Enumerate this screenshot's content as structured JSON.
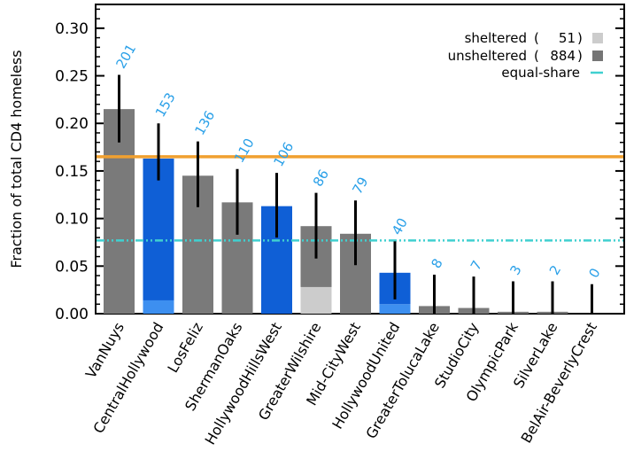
{
  "chart_data": {
    "type": "bar",
    "title": "",
    "xlabel": "",
    "ylabel": "Fraction of total CD4 homeless",
    "ylim": [
      0,
      0.325
    ],
    "yticks": [
      "0.00",
      "0.05",
      "0.10",
      "0.15",
      "0.20",
      "0.25",
      "0.30"
    ],
    "categories": [
      "VanNuys",
      "CentralHollywood",
      "LosFeliz",
      "ShermanOaks",
      "HollywoodHillsWest",
      "GreaterWilshire",
      "Mid-CityWest",
      "HollywoodUnited",
      "GreaterTolucaLake",
      "StudioCity",
      "OlympicPark",
      "SilverLake",
      "BelAir-BeverlyCrest"
    ],
    "counts": [
      "201",
      "153",
      "136",
      "110",
      "106",
      "86",
      "79",
      "40",
      "8",
      "7",
      "3",
      "2",
      "0"
    ],
    "series": [
      {
        "name": "sheltered",
        "values": [
          0.0,
          0.014,
          0.0,
          0.0,
          0.0,
          0.028,
          0.0,
          0.01,
          0.0,
          0.0,
          0.0,
          0.0,
          0.0
        ]
      },
      {
        "name": "unsheltered",
        "values": [
          0.215,
          0.149,
          0.145,
          0.117,
          0.113,
          0.064,
          0.084,
          0.033,
          0.008,
          0.006,
          0.002,
          0.002,
          0.0
        ]
      }
    ],
    "highlighted": [
      "CentralHollywood",
      "HollywoodHillsWest",
      "HollywoodUnited"
    ],
    "error_bars": [
      {
        "low": 0.18,
        "high": 0.251
      },
      {
        "low": 0.14,
        "high": 0.2
      },
      {
        "low": 0.112,
        "high": 0.181
      },
      {
        "low": 0.083,
        "high": 0.152
      },
      {
        "low": 0.08,
        "high": 0.148
      },
      {
        "low": 0.058,
        "high": 0.127
      },
      {
        "low": 0.051,
        "high": 0.119
      },
      {
        "low": 0.015,
        "high": 0.076
      },
      {
        "low": 0.0,
        "high": 0.041
      },
      {
        "low": 0.0,
        "high": 0.039
      },
      {
        "low": 0.0,
        "high": 0.034
      },
      {
        "low": 0.0,
        "high": 0.034
      },
      {
        "low": 0.0,
        "high": 0.031
      }
    ],
    "reference_lines": [
      {
        "value": 0.165,
        "color": "#f0a030",
        "style": "solid"
      },
      {
        "value": 0.077,
        "color": "#40d0d0",
        "style": "dash-dot-dot"
      }
    ],
    "legend": {
      "placement": "top-right",
      "entries": [
        {
          "label": "sheltered",
          "count": "51",
          "color": "#cccccc"
        },
        {
          "label": "unsheltered",
          "count": "884",
          "color": "#757575"
        },
        {
          "label": "equal-share",
          "count": "",
          "color": "#40d0d0"
        }
      ]
    },
    "colors": {
      "sheltered": "#cccccc",
      "unsheltered": "#7a7a7a",
      "highlight_unsheltered": "#0f5fd6",
      "highlight_sheltered": "#3d8ff0",
      "count_label": "#2aa0e8",
      "error_bar": "#000000"
    }
  }
}
